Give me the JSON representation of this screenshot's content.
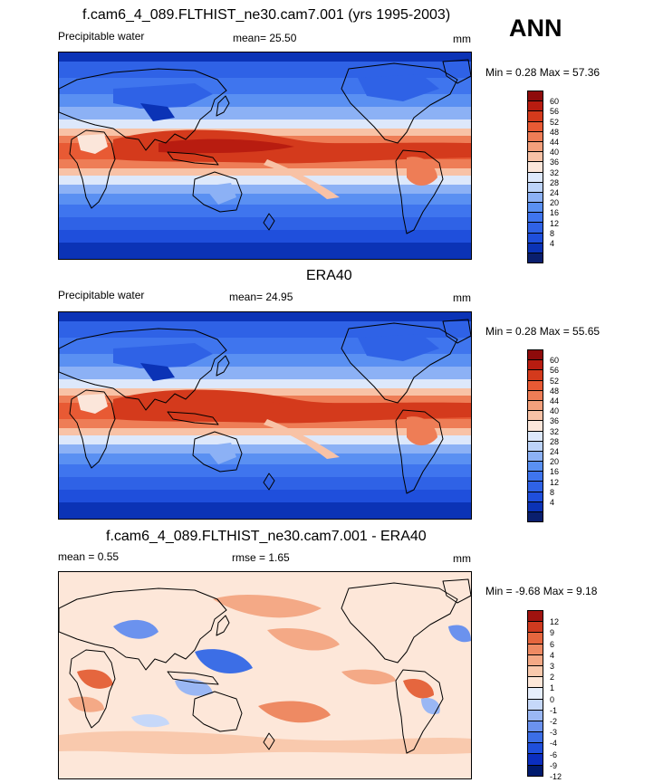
{
  "season": "ANN",
  "colors": {
    "pos": [
      "#0a1f6e",
      "#0b33b6",
      "#1f4fdc",
      "#2f62e6",
      "#3f75ee",
      "#5a90f2",
      "#8cb1f5",
      "#bcd3f9",
      "#dde8fb",
      "#fbe6da",
      "#f8c2a6",
      "#f3a07c",
      "#ee7d56",
      "#e85a34",
      "#d43a1c",
      "#b81c10",
      "#8e0b0b"
    ],
    "diff": [
      "#001a6e",
      "#0b2ebf",
      "#1f4fdc",
      "#3c6ee6",
      "#6b92ee",
      "#9ab7f4",
      "#c6d8f9",
      "#e6eefc",
      "#fde7d9",
      "#f9c9ad",
      "#f4a986",
      "#ee8a63",
      "#e5663e",
      "#cf3a1f",
      "#a0130f"
    ]
  },
  "panels": [
    {
      "title": "f.cam6_4_089.FLTHIST_ne30.cam7.001 (yrs 1995-2003)",
      "left": "Precipitable water",
      "mid": "mean=  25.50",
      "units": "mm",
      "minmax": "Min =   0.28 Max =  57.36",
      "type": "field",
      "ticks": [
        "60",
        "56",
        "52",
        "48",
        "44",
        "40",
        "36",
        "32",
        "28",
        "24",
        "20",
        "16",
        "12",
        "8",
        "4"
      ]
    },
    {
      "title": "ERA40",
      "left": "Precipitable water",
      "mid": "mean=  24.95",
      "units": "mm",
      "minmax": "Min =   0.28 Max =  55.65",
      "type": "field",
      "ticks": [
        "60",
        "56",
        "52",
        "48",
        "44",
        "40",
        "36",
        "32",
        "28",
        "24",
        "20",
        "16",
        "12",
        "8",
        "4"
      ]
    },
    {
      "title": "f.cam6_4_089.FLTHIST_ne30.cam7.001 - ERA40",
      "left": "mean =   0.55",
      "mid": "rmse =   1.65",
      "units": "mm",
      "minmax": "Min =  -9.68 Max =   9.18",
      "type": "diff",
      "ticks": [
        "12",
        "9",
        "6",
        "4",
        "3",
        "2",
        "1",
        "0",
        "-1",
        "-2",
        "-3",
        "-4",
        "-6",
        "-9",
        "-12"
      ]
    }
  ]
}
